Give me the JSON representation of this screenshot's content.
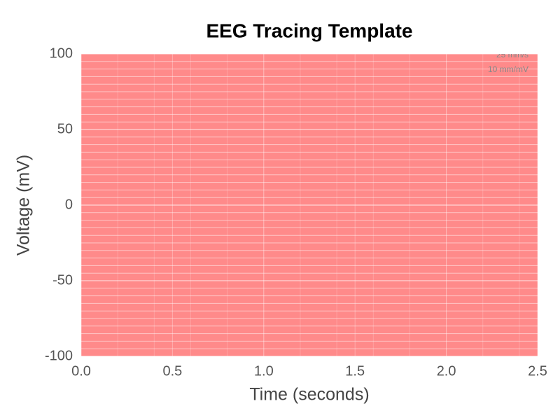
{
  "chart_data": {
    "type": "line",
    "title": "EEG Tracing Template",
    "x_label": "Time (seconds)",
    "y_label": "Voltage (mV)",
    "annotations": [
      "25 mm/s",
      "10 mm/mV"
    ],
    "series": [],
    "background": "#ff8a8a",
    "grid": true,
    "x_grid_step": 0.2,
    "y_grid_step": 5,
    "xlim": [
      0,
      2.5
    ],
    "ylim": [
      -100,
      100
    ],
    "xticks": [
      {
        "value": 0,
        "label": "0.0"
      },
      0.5,
      {
        "value": 1,
        "label": "1.0"
      },
      1.5,
      {
        "value": 2,
        "label": "2.0"
      },
      2.5
    ],
    "yticks": [
      -100,
      -50,
      0,
      50,
      100
    ]
  }
}
